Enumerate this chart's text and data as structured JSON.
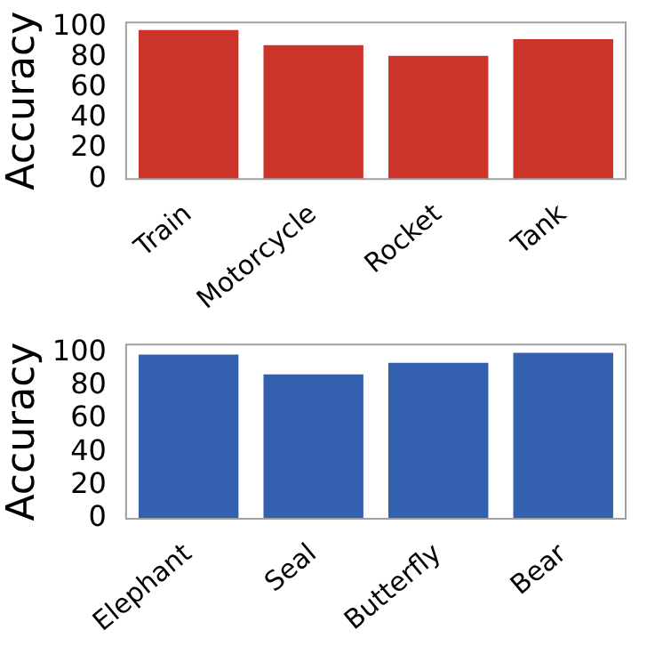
{
  "chart_data": [
    {
      "type": "bar",
      "ylabel": "Accuracy",
      "categories": [
        "Train",
        "Motorcycle",
        "Rocket",
        "Tank"
      ],
      "values": [
        98,
        88,
        81,
        92
      ],
      "color": "#cd3429",
      "ylim": [
        0,
        103
      ],
      "yticks": [
        0,
        20,
        40,
        60,
        80,
        100
      ],
      "grid": false,
      "legend": false
    },
    {
      "type": "bar",
      "ylabel": "Accuracy",
      "categories": [
        "Elephant",
        "Seal",
        "Butterfly",
        "Bear"
      ],
      "values": [
        99,
        87,
        94,
        100
      ],
      "color": "#3460b0",
      "ylim": [
        0,
        105
      ],
      "yticks": [
        0,
        20,
        40,
        60,
        80,
        100
      ],
      "grid": false,
      "legend": false
    }
  ]
}
